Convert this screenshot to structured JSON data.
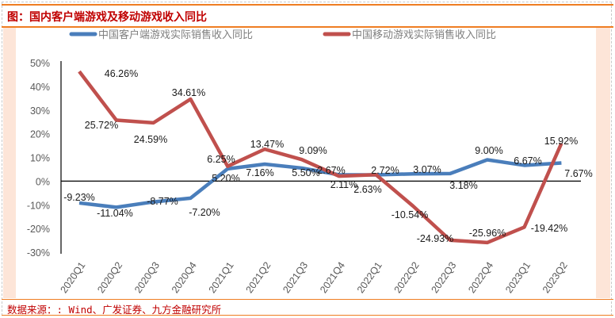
{
  "title": "图：国内客户端游戏及移动游戏收入同比",
  "source": "数据来源：: Wind、广发证券、九方金融研究所",
  "chart_data": {
    "type": "line",
    "categories": [
      "2020Q1",
      "2020Q2",
      "2020Q3",
      "2020Q4",
      "2021Q1",
      "2021Q2",
      "2021Q3",
      "2021Q4",
      "2022Q1",
      "2022Q2",
      "2022Q3",
      "2022Q4",
      "2023Q1",
      "2023Q2"
    ],
    "ylim": [
      -30,
      50
    ],
    "yticks": [
      "50%",
      "40%",
      "30%",
      "20%",
      "10%",
      "0%",
      "-10%",
      "-20%",
      "-30%"
    ],
    "ytick_values": [
      50,
      40,
      30,
      20,
      10,
      0,
      -10,
      -20,
      -30
    ],
    "grid": false,
    "legend_position": "top",
    "series": [
      {
        "name": "中国客户端游戏实际销售收入同比",
        "color": "#4a7ebb",
        "values": [
          -9.23,
          -11.04,
          -8.77,
          -7.2,
          5.2,
          7.16,
          5.5,
          2.67,
          2.63,
          3.07,
          3.18,
          9.0,
          6.67,
          7.67
        ],
        "labels": [
          "-9.23%",
          "-11.04%",
          "-8.77%",
          "-7.20%",
          "5.20%",
          "7.16%",
          "5.50%",
          "2.67%",
          "2.63%",
          "3.07%",
          "3.18%",
          "9.00%",
          "6.67%",
          "7.67%"
        ]
      },
      {
        "name": "中国移动游戏实际销售收入同比",
        "color": "#c0504d",
        "values": [
          46.26,
          25.72,
          24.59,
          34.61,
          6.25,
          13.47,
          9.09,
          2.11,
          2.72,
          -10.54,
          -24.93,
          -25.96,
          -19.42,
          15.92
        ],
        "labels": [
          "46.26%",
          "25.72%",
          "24.59%",
          "34.61%",
          "6.25%",
          "13.47%",
          "9.09%",
          "2.11%",
          "2.72%",
          "-10.54%",
          "-24.93%",
          "-25.96%",
          "-19.42%",
          "15.92%"
        ]
      }
    ]
  }
}
